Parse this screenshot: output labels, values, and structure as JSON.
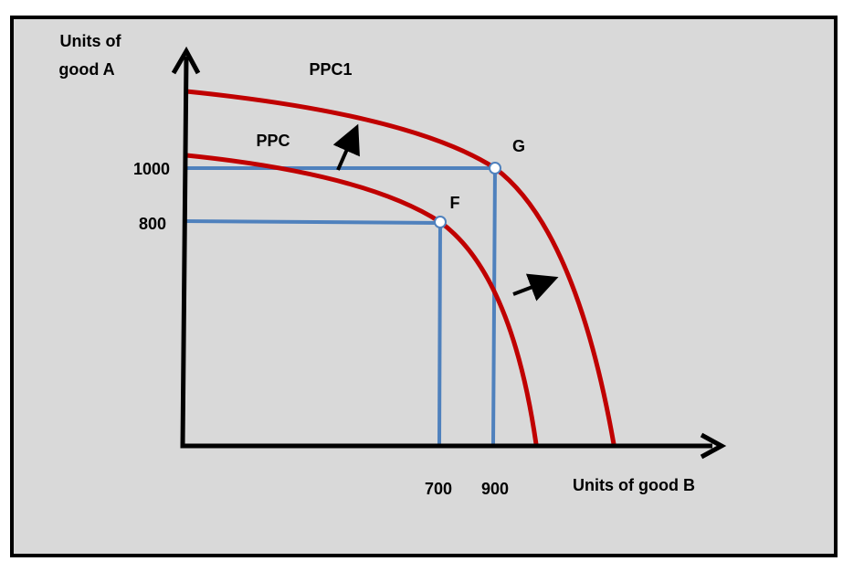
{
  "y_axis": {
    "label_lines": [
      "Units of",
      "good A"
    ],
    "tick_labels": [
      "1000",
      "800"
    ]
  },
  "x_axis": {
    "label": "Units of good B",
    "tick_labels": [
      "700",
      "900"
    ]
  },
  "curves": [
    {
      "label": "PPC1"
    },
    {
      "label": "PPC"
    }
  ],
  "points": [
    {
      "label": "G"
    },
    {
      "label": "F"
    }
  ]
}
